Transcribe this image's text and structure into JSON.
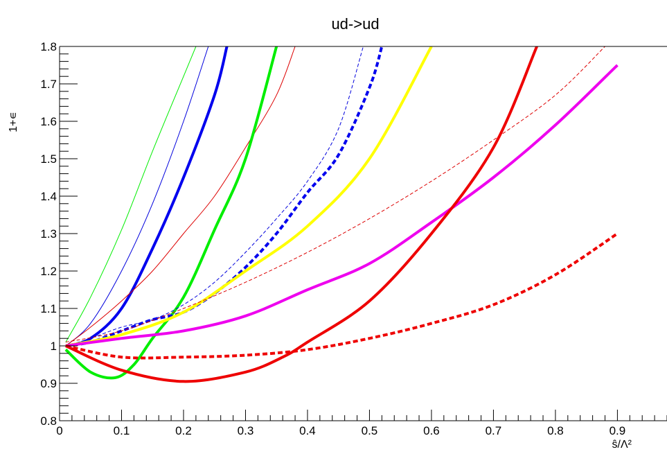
{
  "chart_data": {
    "type": "line",
    "title": "ud->ud",
    "xlabel": "ŝ/Λ²",
    "ylabel": "1+∊",
    "xlim": [
      0,
      0.98
    ],
    "ylim": [
      0.8,
      1.8
    ],
    "grid": false,
    "x_ticks": [
      "0",
      "0.1",
      "0.2",
      "0.3",
      "0.4",
      "0.5",
      "0.6",
      "0.7",
      "0.8",
      "0.9"
    ],
    "y_ticks": [
      "0.8",
      "0.9",
      "1",
      "1.1",
      "1.2",
      "1.3",
      "1.4",
      "1.5",
      "1.6",
      "1.7",
      "1.8"
    ],
    "series": [
      {
        "color": "#00ee00",
        "style": "solid",
        "width": 1,
        "points": [
          [
            0.01,
            1.01
          ],
          [
            0.05,
            1.13
          ],
          [
            0.1,
            1.31
          ],
          [
            0.15,
            1.52
          ],
          [
            0.2,
            1.72
          ],
          [
            0.22,
            1.8
          ]
        ]
      },
      {
        "color": "#0000dd",
        "style": "solid",
        "width": 1,
        "points": [
          [
            0.01,
            1.0
          ],
          [
            0.05,
            1.06
          ],
          [
            0.1,
            1.2
          ],
          [
            0.15,
            1.38
          ],
          [
            0.2,
            1.6
          ],
          [
            0.24,
            1.8
          ]
        ]
      },
      {
        "color": "#0000ee",
        "style": "solid",
        "width": 4,
        "points": [
          [
            0.01,
            1.0
          ],
          [
            0.05,
            1.02
          ],
          [
            0.1,
            1.1
          ],
          [
            0.15,
            1.26
          ],
          [
            0.2,
            1.45
          ],
          [
            0.25,
            1.67
          ],
          [
            0.27,
            1.8
          ]
        ]
      },
      {
        "color": "#dd0000",
        "style": "solid",
        "width": 1,
        "points": [
          [
            0.01,
            1.0
          ],
          [
            0.05,
            1.05
          ],
          [
            0.1,
            1.12
          ],
          [
            0.15,
            1.2
          ],
          [
            0.2,
            1.3
          ],
          [
            0.25,
            1.4
          ],
          [
            0.3,
            1.53
          ],
          [
            0.35,
            1.67
          ],
          [
            0.38,
            1.8
          ]
        ]
      },
      {
        "color": "#00ee00",
        "style": "solid",
        "width": 4,
        "points": [
          [
            0.01,
            0.99
          ],
          [
            0.05,
            0.93
          ],
          [
            0.09,
            0.915
          ],
          [
            0.12,
            0.95
          ],
          [
            0.15,
            1.02
          ],
          [
            0.2,
            1.13
          ],
          [
            0.25,
            1.31
          ],
          [
            0.3,
            1.5
          ],
          [
            0.35,
            1.8
          ]
        ]
      },
      {
        "color": "#0000dd",
        "style": "dashed",
        "width": 1,
        "points": [
          [
            0.01,
            1.0
          ],
          [
            0.05,
            1.02
          ],
          [
            0.1,
            1.05
          ],
          [
            0.15,
            1.07
          ],
          [
            0.2,
            1.11
          ],
          [
            0.25,
            1.17
          ],
          [
            0.3,
            1.25
          ],
          [
            0.35,
            1.34
          ],
          [
            0.4,
            1.44
          ],
          [
            0.45,
            1.58
          ],
          [
            0.49,
            1.8
          ]
        ]
      },
      {
        "color": "#0000ee",
        "style": "dashed",
        "width": 4,
        "points": [
          [
            0.01,
            1.0
          ],
          [
            0.05,
            1.01
          ],
          [
            0.1,
            1.04
          ],
          [
            0.15,
            1.07
          ],
          [
            0.2,
            1.09
          ],
          [
            0.25,
            1.14
          ],
          [
            0.3,
            1.21
          ],
          [
            0.35,
            1.3
          ],
          [
            0.4,
            1.41
          ],
          [
            0.45,
            1.51
          ],
          [
            0.5,
            1.69
          ],
          [
            0.52,
            1.8
          ]
        ]
      },
      {
        "color": "#ffff00",
        "style": "solid",
        "width": 4,
        "points": [
          [
            0.01,
            1.0
          ],
          [
            0.1,
            1.03
          ],
          [
            0.2,
            1.09
          ],
          [
            0.3,
            1.2
          ],
          [
            0.4,
            1.32
          ],
          [
            0.5,
            1.5
          ],
          [
            0.6,
            1.8
          ]
        ]
      },
      {
        "color": "#dd0000",
        "style": "dashed",
        "width": 1,
        "points": [
          [
            0.01,
            1.01
          ],
          [
            0.1,
            1.04
          ],
          [
            0.2,
            1.1
          ],
          [
            0.3,
            1.17
          ],
          [
            0.4,
            1.25
          ],
          [
            0.5,
            1.34
          ],
          [
            0.6,
            1.44
          ],
          [
            0.7,
            1.55
          ],
          [
            0.8,
            1.67
          ],
          [
            0.88,
            1.8
          ]
        ]
      },
      {
        "color": "#ee00ee",
        "style": "solid",
        "width": 4,
        "points": [
          [
            0.01,
            1.0
          ],
          [
            0.1,
            1.02
          ],
          [
            0.2,
            1.04
          ],
          [
            0.3,
            1.08
          ],
          [
            0.4,
            1.15
          ],
          [
            0.5,
            1.22
          ],
          [
            0.6,
            1.33
          ],
          [
            0.7,
            1.45
          ],
          [
            0.8,
            1.59
          ],
          [
            0.9,
            1.75
          ]
        ]
      },
      {
        "color": "#ee0000",
        "style": "dashed",
        "width": 4,
        "points": [
          [
            0.01,
            1.0
          ],
          [
            0.1,
            0.97
          ],
          [
            0.2,
            0.97
          ],
          [
            0.3,
            0.975
          ],
          [
            0.4,
            0.99
          ],
          [
            0.5,
            1.02
          ],
          [
            0.6,
            1.06
          ],
          [
            0.7,
            1.11
          ],
          [
            0.8,
            1.19
          ],
          [
            0.9,
            1.3
          ]
        ]
      },
      {
        "color": "#ee0000",
        "style": "solid",
        "width": 4,
        "points": [
          [
            0.01,
            1.0
          ],
          [
            0.1,
            0.935
          ],
          [
            0.2,
            0.905
          ],
          [
            0.3,
            0.93
          ],
          [
            0.36,
            0.97
          ],
          [
            0.4,
            1.01
          ],
          [
            0.5,
            1.12
          ],
          [
            0.6,
            1.3
          ],
          [
            0.7,
            1.53
          ],
          [
            0.77,
            1.8
          ]
        ]
      }
    ]
  }
}
